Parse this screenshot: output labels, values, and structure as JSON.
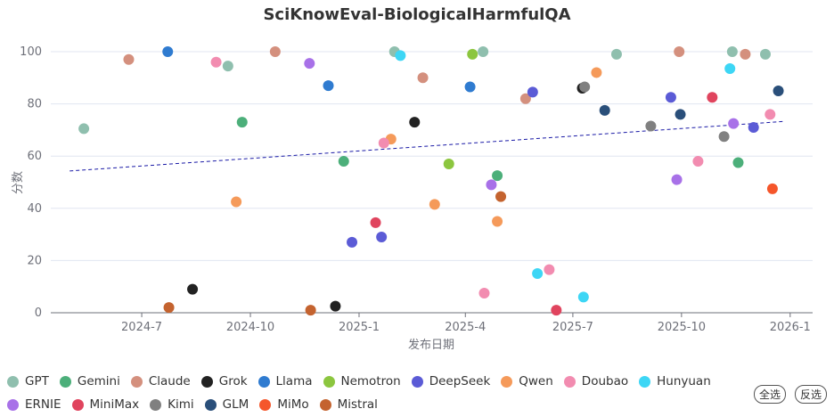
{
  "chart_data": {
    "type": "scatter",
    "title": "SciKnowEval-BiologicalHarmfulQA",
    "xlabel": "发布日期",
    "ylabel": "分数",
    "x_ticks": [
      "2024-7",
      "2024-10",
      "2025-1",
      "2025-4",
      "2025-7",
      "2025-10",
      "2026-1"
    ],
    "y_ticks": [
      0,
      20,
      40,
      60,
      80,
      100
    ],
    "ylim": [
      0,
      100
    ],
    "xlim": [
      "2024-04-15",
      "2026-01-20"
    ],
    "grid": true,
    "legend_position": "bottom",
    "trendline": {
      "style": "dashed",
      "color": "#1a1aa6",
      "start": {
        "x": "2024-05-01",
        "y": 54.3
      },
      "end": {
        "x": "2025-12-27",
        "y": 73.3
      }
    },
    "series": [
      {
        "name": "GPT",
        "color": "#8fbfae",
        "points": [
          {
            "x": "2024-05-13",
            "y": 70.5
          },
          {
            "x": "2024-09-12",
            "y": 94.5
          },
          {
            "x": "2025-01-31",
            "y": 100
          },
          {
            "x": "2025-04-16",
            "y": 100
          },
          {
            "x": "2025-08-07",
            "y": 99
          },
          {
            "x": "2025-11-13",
            "y": 100
          },
          {
            "x": "2025-12-11",
            "y": 99
          }
        ]
      },
      {
        "name": "Gemini",
        "color": "#4caf7a",
        "points": [
          {
            "x": "2024-09-24",
            "y": 73
          },
          {
            "x": "2024-12-19",
            "y": 58
          },
          {
            "x": "2025-04-28",
            "y": 52.5
          },
          {
            "x": "2025-11-18",
            "y": 57.5
          }
        ]
      },
      {
        "name": "Claude",
        "color": "#d4907e",
        "points": [
          {
            "x": "2024-06-20",
            "y": 97
          },
          {
            "x": "2024-10-22",
            "y": 100
          },
          {
            "x": "2025-02-24",
            "y": 90
          },
          {
            "x": "2025-05-22",
            "y": 82
          },
          {
            "x": "2025-09-29",
            "y": 100
          },
          {
            "x": "2025-11-24",
            "y": 99
          }
        ]
      },
      {
        "name": "Grok",
        "color": "#222222",
        "points": [
          {
            "x": "2024-08-13",
            "y": 9
          },
          {
            "x": "2024-12-12",
            "y": 2.5
          },
          {
            "x": "2025-02-17",
            "y": 73
          },
          {
            "x": "2025-07-09",
            "y": 86
          }
        ]
      },
      {
        "name": "Llama",
        "color": "#2f7bd0",
        "points": [
          {
            "x": "2024-07-23",
            "y": 100
          },
          {
            "x": "2024-12-06",
            "y": 87
          },
          {
            "x": "2025-04-05",
            "y": 86.5
          }
        ]
      },
      {
        "name": "Nemotron",
        "color": "#8cc63f",
        "points": [
          {
            "x": "2025-03-18",
            "y": 57
          },
          {
            "x": "2025-04-07",
            "y": 99
          }
        ]
      },
      {
        "name": "DeepSeek",
        "color": "#5b5bd6",
        "points": [
          {
            "x": "2024-12-26",
            "y": 27
          },
          {
            "x": "2025-01-20",
            "y": 29
          },
          {
            "x": "2025-05-28",
            "y": 84.5
          },
          {
            "x": "2025-09-22",
            "y": 82.5
          },
          {
            "x": "2025-12-01",
            "y": 71
          }
        ]
      },
      {
        "name": "Qwen",
        "color": "#f59a5a",
        "points": [
          {
            "x": "2024-09-19",
            "y": 42.5
          },
          {
            "x": "2025-01-28",
            "y": 66.5
          },
          {
            "x": "2025-03-06",
            "y": 41.5
          },
          {
            "x": "2025-04-28",
            "y": 35
          },
          {
            "x": "2025-07-21",
            "y": 92
          }
        ]
      },
      {
        "name": "Doubao",
        "color": "#f28cb0",
        "points": [
          {
            "x": "2024-09-02",
            "y": 96
          },
          {
            "x": "2025-01-22",
            "y": 65
          },
          {
            "x": "2025-04-17",
            "y": 7.5
          },
          {
            "x": "2025-06-11",
            "y": 16.5
          },
          {
            "x": "2025-10-15",
            "y": 58
          },
          {
            "x": "2025-12-15",
            "y": 76
          }
        ]
      },
      {
        "name": "Hunyuan",
        "color": "#3dd6f5",
        "points": [
          {
            "x": "2025-02-05",
            "y": 98.5
          },
          {
            "x": "2025-06-01",
            "y": 15
          },
          {
            "x": "2025-07-10",
            "y": 6
          },
          {
            "x": "2025-11-11",
            "y": 93.5
          }
        ]
      },
      {
        "name": "ERNIE",
        "color": "#a871e8",
        "points": [
          {
            "x": "2024-11-20",
            "y": 95.5
          },
          {
            "x": "2025-04-23",
            "y": 49
          },
          {
            "x": "2025-09-27",
            "y": 51
          },
          {
            "x": "2025-11-14",
            "y": 72.5
          }
        ]
      },
      {
        "name": "MiniMax",
        "color": "#e0445e",
        "points": [
          {
            "x": "2025-01-15",
            "y": 34.5
          },
          {
            "x": "2025-06-17",
            "y": 1
          },
          {
            "x": "2025-10-27",
            "y": 82.5
          }
        ]
      },
      {
        "name": "Kimi",
        "color": "#808080",
        "points": [
          {
            "x": "2025-07-11",
            "y": 86.5
          },
          {
            "x": "2025-09-05",
            "y": 71.5
          },
          {
            "x": "2025-11-06",
            "y": 67.5
          }
        ]
      },
      {
        "name": "GLM",
        "color": "#2a4f7a",
        "points": [
          {
            "x": "2025-07-28",
            "y": 77.5
          },
          {
            "x": "2025-09-30",
            "y": 76
          },
          {
            "x": "2025-12-22",
            "y": 85
          }
        ]
      },
      {
        "name": "MiMo",
        "color": "#f5562b",
        "points": [
          {
            "x": "2025-12-17",
            "y": 47.5
          }
        ]
      },
      {
        "name": "Mistral",
        "color": "#c4632f",
        "points": [
          {
            "x": "2024-07-24",
            "y": 2
          },
          {
            "x": "2024-11-21",
            "y": 1
          },
          {
            "x": "2025-05-01",
            "y": 44.5
          }
        ]
      }
    ]
  },
  "controls": {
    "select_all": "全选",
    "invert": "反选"
  }
}
